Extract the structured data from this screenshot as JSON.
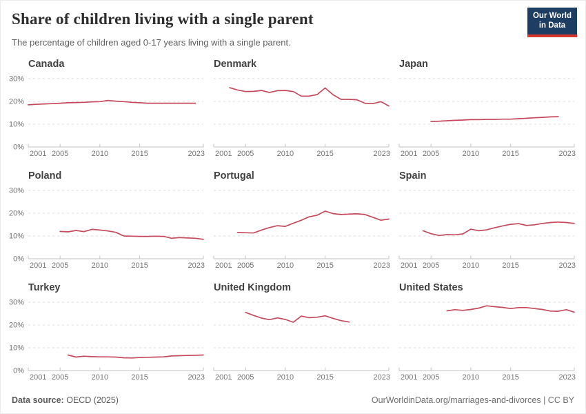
{
  "header": {
    "title": "Share of children living with a single parent",
    "subtitle": "The percentage of children aged 0-17 years living with a single parent.",
    "logo_line1": "Our World",
    "logo_line2": "in Data"
  },
  "footer": {
    "source_label": "Data source:",
    "source_value": "OECD (2025)",
    "right_text": "OurWorldinData.org/marriages-and-divorces | CC BY"
  },
  "colors": {
    "line": "#c4495b",
    "grid": "#dcdcdc",
    "axis": "#c2c2c2",
    "tick_label": "#737373",
    "logo_bg": "#1d3d63",
    "logo_accent": "#d8382c"
  },
  "chart_data": {
    "type": "line",
    "title": "Share of children living with a single parent",
    "subtitle": "The percentage of children aged 0-17 years living with a single parent.",
    "xlim": [
      2001,
      2023
    ],
    "ylim": [
      0,
      32.7
    ],
    "x_ticks": [
      2001,
      2005,
      2010,
      2015,
      2023
    ],
    "y_ticks": [
      0,
      10,
      20,
      30
    ],
    "y_tick_suffix": "%",
    "grid": "horizontal-dashed",
    "legend_position": "none",
    "charts": [
      {
        "name": "Canada",
        "start_year": 2001,
        "values": [
          18.5,
          18.7,
          18.9,
          19.0,
          19.2,
          19.4,
          19.5,
          19.6,
          19.8,
          19.9,
          20.4,
          20.1,
          19.9,
          19.6,
          19.4,
          19.2,
          19.2,
          19.2,
          19.2,
          19.2,
          19.2,
          19.2
        ]
      },
      {
        "name": "Denmark",
        "start_year": 2003,
        "values": [
          26.0,
          25.0,
          24.3,
          24.4,
          24.8,
          23.9,
          24.7,
          24.8,
          24.3,
          22.3,
          22.3,
          23.0,
          25.9,
          22.9,
          20.9,
          20.9,
          20.7,
          19.2,
          19.0,
          19.9,
          18.0
        ]
      },
      {
        "name": "Japan",
        "start_year": 2005,
        "values": [
          11.2,
          11.3,
          11.5,
          11.7,
          11.8,
          12.0,
          12.0,
          12.1,
          12.1,
          12.2,
          12.2,
          12.4,
          12.6,
          12.8,
          13.0,
          13.2,
          13.3
        ]
      },
      {
        "name": "Poland",
        "start_year": 2005,
        "values": [
          12.0,
          11.8,
          12.4,
          11.9,
          12.9,
          12.6,
          12.2,
          11.6,
          10.0,
          9.9,
          9.8,
          9.8,
          9.9,
          9.8,
          9.0,
          9.3,
          9.1,
          9.0,
          8.5
        ]
      },
      {
        "name": "Portugal",
        "start_year": 2004,
        "values": [
          11.5,
          11.4,
          11.3,
          12.6,
          13.7,
          14.5,
          14.2,
          15.6,
          16.9,
          18.4,
          19.1,
          20.9,
          19.8,
          19.4,
          19.6,
          19.7,
          19.4,
          18.2,
          16.9,
          17.4
        ]
      },
      {
        "name": "Spain",
        "start_year": 2004,
        "values": [
          12.3,
          11.0,
          10.2,
          10.6,
          10.5,
          10.9,
          13.0,
          12.3,
          12.7,
          13.6,
          14.4,
          15.1,
          15.4,
          14.6,
          14.9,
          15.5,
          15.9,
          16.1,
          15.9,
          15.5
        ]
      },
      {
        "name": "Turkey",
        "start_year": 2006,
        "values": [
          6.8,
          5.9,
          6.3,
          6.1,
          6.0,
          6.0,
          5.9,
          5.6,
          5.5,
          5.7,
          5.8,
          5.9,
          6.0,
          6.4,
          6.5,
          6.6,
          6.7,
          6.8
        ]
      },
      {
        "name": "United Kingdom",
        "start_year": 2005,
        "values": [
          25.5,
          24.2,
          23.0,
          22.3,
          23.1,
          22.4,
          21.2,
          23.9,
          23.2,
          23.4,
          24.0,
          22.9,
          21.9,
          21.3
        ]
      },
      {
        "name": "United States",
        "start_year": 2007,
        "values": [
          26.2,
          26.7,
          26.4,
          26.8,
          27.4,
          28.4,
          28.0,
          27.7,
          27.2,
          27.6,
          27.6,
          27.2,
          26.8,
          26.1,
          26.0,
          26.7,
          25.6
        ]
      }
    ]
  }
}
